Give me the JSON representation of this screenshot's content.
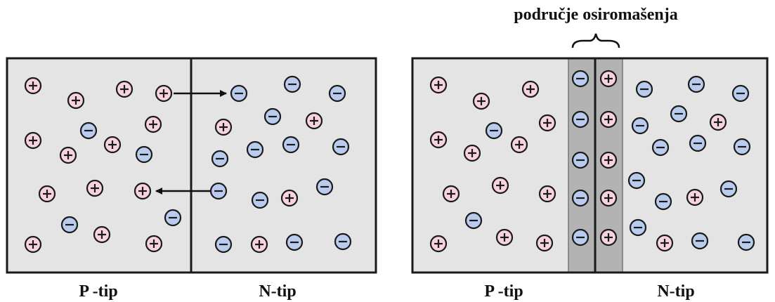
{
  "colors": {
    "positive_ion_fill": "#f6d3de",
    "negative_ion_fill": "#b9ccee",
    "panel_fill": "#e4e4e4",
    "depletion_fill": "#b3b3b3"
  },
  "left_panel": {
    "p_label": "P -tip",
    "n_label": "N-tip"
  },
  "right_panel": {
    "p_label": "P -tip",
    "n_label": "N-tip",
    "depletion_label": "područje osiromašenja"
  }
}
